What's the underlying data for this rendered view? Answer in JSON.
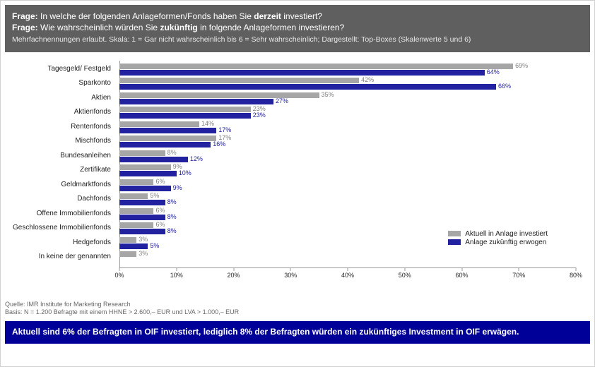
{
  "header": {
    "q1_label": "Frage:",
    "q1_text_a": " In welche der folgenden Anlageformen/Fonds haben Sie ",
    "q1_bold": "derzeit",
    "q1_text_b": " investiert?",
    "q2_label": "Frage:",
    "q2_text_a": " Wie wahrscheinlich würden Sie ",
    "q2_bold": "zukünftig",
    "q2_text_b": " in folgende Anlageformen investieren?",
    "sub": "Mehrfachnennungen erlaubt. Skala: 1 = Gar nicht wahrscheinlich bis 6 = Sehr wahrscheinlich; Dargestellt: Top-Boxes (Skalenwerte 5 und 6)"
  },
  "chart": {
    "type": "grouped-horizontal-bar",
    "x_max": 80,
    "x_tick_step": 10,
    "bar_colors": {
      "series1": "#a6a6a6",
      "series2": "#2222a0"
    },
    "label_colors": {
      "series1": "#808080",
      "series2": "#2222a0"
    },
    "categories": [
      {
        "label": "Tagesgeld/ Festgeld",
        "s1": 69,
        "s2": 64
      },
      {
        "label": "Sparkonto",
        "s1": 42,
        "s2": 66
      },
      {
        "label": "Aktien",
        "s1": 35,
        "s2": 27
      },
      {
        "label": "Aktienfonds",
        "s1": 23,
        "s2": 23
      },
      {
        "label": "Rentenfonds",
        "s1": 14,
        "s2": 17
      },
      {
        "label": "Mischfonds",
        "s1": 17,
        "s2": 16
      },
      {
        "label": "Bundesanleihen",
        "s1": 8,
        "s2": 12
      },
      {
        "label": "Zertifikate",
        "s1": 9,
        "s2": 10
      },
      {
        "label": "Geldmarktfonds",
        "s1": 6,
        "s2": 9
      },
      {
        "label": "Dachfonds",
        "s1": 5,
        "s2": 8
      },
      {
        "label": "Offene Immobilienfonds",
        "s1": 6,
        "s2": 8
      },
      {
        "label": "Geschlossene Immobilienfonds",
        "s1": 6,
        "s2": 8
      },
      {
        "label": "Hedgefonds",
        "s1": 3,
        "s2": 5
      },
      {
        "label": "In keine der genannten",
        "s1": 3,
        "s2": null
      }
    ],
    "legend": {
      "series1": "Aktuell in Anlage investiert",
      "series2": "Anlage zukünftig erwogen"
    },
    "axis_suffix": "%"
  },
  "source": {
    "line1": "Quelle: IMR Institute for Marketing Research",
    "line2": "Basis: N = 1.200 Befragte mit einem HHNE > 2.600,– EUR und LVA > 1.000,– EUR"
  },
  "footer": "Aktuell sind 6% der Befragten in OIF investiert, lediglich 8% der Befragten würden ein zukünftiges Investment in OIF erwägen."
}
